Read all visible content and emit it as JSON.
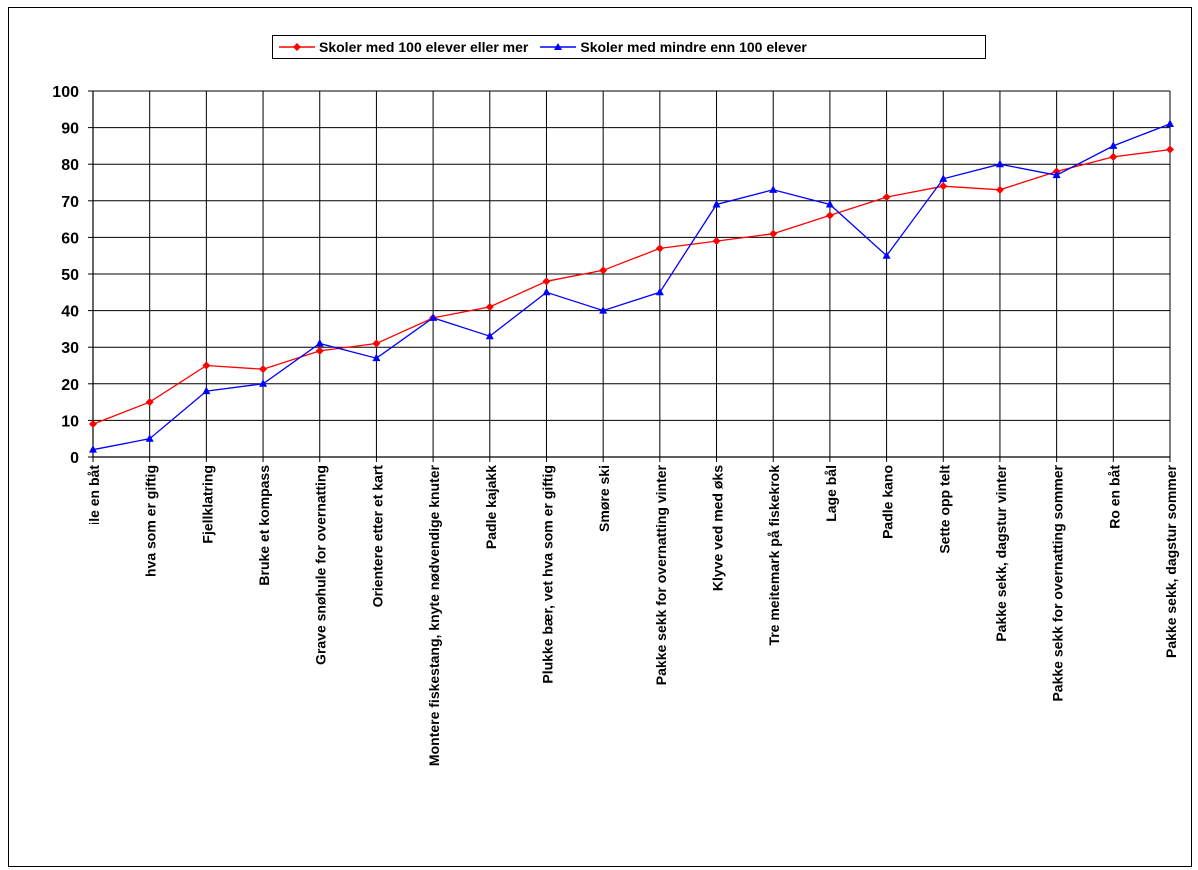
{
  "chart_data": {
    "type": "line",
    "title": "",
    "xlabel": "",
    "ylabel": "",
    "ylim": [
      0,
      100
    ],
    "yticks": [
      0,
      10,
      20,
      30,
      40,
      50,
      60,
      70,
      80,
      90,
      100
    ],
    "grid": true,
    "legend_position": "top-center",
    "categories": [
      "Seile en båt",
      "Plukke sopp og urter, vet hva som er giftig",
      "Fjellklatring",
      "Bruke et kompass",
      "Grave snøhule for overnatting",
      "Orientere etter et kart",
      "Montere fiskestang, knyte nødvendige knuter",
      "Padle kajakk",
      "Plukke bær, vet hva som er giftig",
      "Smøre ski",
      "Pakke sekk for overnatting vinter",
      "Klyve ved med øks",
      "Tre meitemark på fiskekrok",
      "Lage bål",
      "Padle kano",
      "Sette opp telt",
      "Pakke sekk, dagstur vinter",
      "Pakke sekk for overnatting sommer",
      "Ro en båt",
      "Pakke sekk, dagstur sommer"
    ],
    "series": [
      {
        "name": "Skoler med 100 elever eller mer",
        "color": "#ff0000",
        "marker": "diamond",
        "values": [
          9,
          15,
          25,
          24,
          29,
          31,
          38,
          41,
          48,
          51,
          57,
          59,
          61,
          66,
          71,
          74,
          73,
          78,
          82,
          84
        ]
      },
      {
        "name": "Skoler med mindre enn 100 elever",
        "color": "#0000ff",
        "marker": "triangle",
        "values": [
          2,
          5,
          18,
          20,
          31,
          27,
          38,
          33,
          45,
          40,
          45,
          69,
          73,
          69,
          55,
          76,
          80,
          77,
          85,
          91
        ]
      }
    ]
  }
}
